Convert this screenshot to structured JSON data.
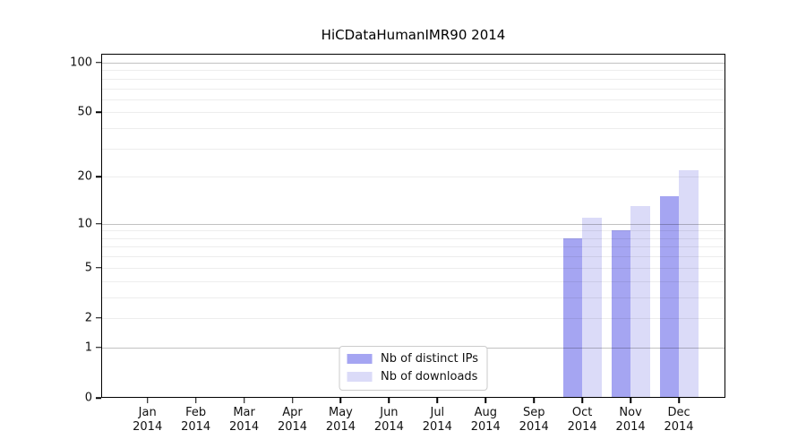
{
  "chart_data": {
    "type": "bar",
    "title": "HiCDataHumanIMR90 2014",
    "xlabel": "",
    "ylabel": "",
    "yscale": "log1p",
    "ylim": [
      0,
      113
    ],
    "yticks": [
      0,
      1,
      2,
      5,
      10,
      20,
      50,
      100
    ],
    "grid": "horizontal",
    "legend_position": "bottom-center-inside",
    "x_tick_year": "2014",
    "categories": [
      "Jan",
      "Feb",
      "Mar",
      "Apr",
      "May",
      "Jun",
      "Jul",
      "Aug",
      "Sep",
      "Oct",
      "Nov",
      "Dec"
    ],
    "series": [
      {
        "name": "Nb of distinct IPs",
        "color": "#a5a5f2",
        "values": [
          0,
          0,
          0,
          0,
          0,
          0,
          0,
          0,
          0,
          8,
          9,
          15
        ]
      },
      {
        "name": "Nb of downloads",
        "color": "#dbdbf8",
        "values": [
          0,
          0,
          0,
          0,
          0,
          0,
          0,
          0,
          0,
          11,
          13,
          22
        ]
      }
    ]
  }
}
